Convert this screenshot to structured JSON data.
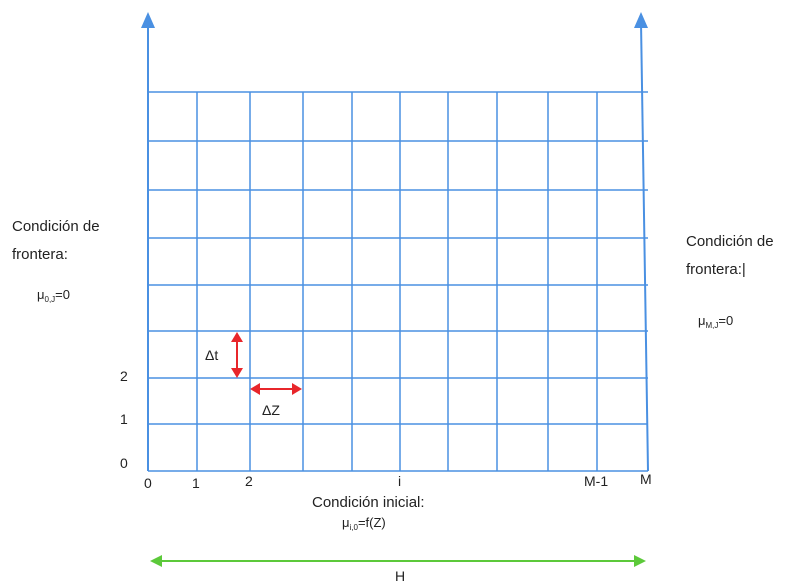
{
  "left_boundary": {
    "line1": "Condición de",
    "line2": "frontera:",
    "formula_base": "μ",
    "formula_sub": "0,J",
    "formula_rest": "=0"
  },
  "right_boundary": {
    "line1": "Condición de",
    "line2": "frontera:|",
    "formula_base": "μ",
    "formula_sub": "M,J",
    "formula_rest": "=0"
  },
  "initial_condition": {
    "line1": "Condición inicial:",
    "formula_base": "μ",
    "formula_sub": "i,0",
    "formula_rest": "=f(Z)"
  },
  "y_axis_labels": [
    "0",
    "1",
    "2"
  ],
  "x_axis_labels": [
    "0",
    "1",
    "2",
    "i",
    "M-1",
    "M"
  ],
  "delta_t_label": "Δt",
  "delta_z_label": "ΔZ",
  "width_label": "H",
  "colors": {
    "grid": "#4a90e2",
    "step_arrows": "#e8262b",
    "width_arrow": "#5cc93a"
  }
}
